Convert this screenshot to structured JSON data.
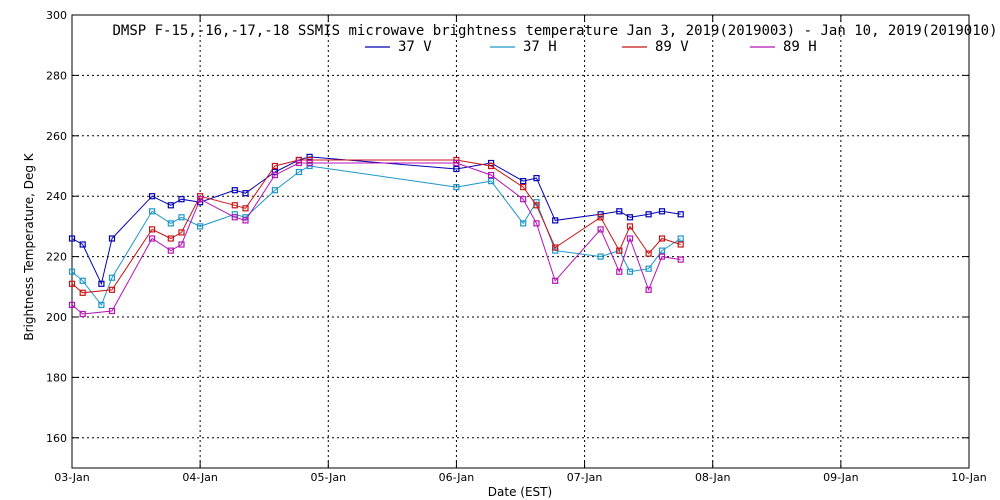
{
  "chart_data": {
    "type": "line",
    "title": "DMSP F-15,-16,-17,-18 SSMIS microwave brightness temperature Jan  3, 2019(2019003) - Jan 10, 2019(2019010)",
    "xlabel": "Date (EST)",
    "ylabel": "Brightness Temperature, Deg K",
    "xlim": [
      "2019-01-03",
      "2019-01-10"
    ],
    "ylim": [
      150,
      300
    ],
    "yticks": [
      160,
      180,
      200,
      220,
      240,
      260,
      280,
      300
    ],
    "xtick_labels": [
      "03-Jan",
      "04-Jan",
      "05-Jan",
      "06-Jan",
      "07-Jan",
      "08-Jan",
      "09-Jan",
      "10-Jan"
    ],
    "grid": true,
    "legend_position": "top-center",
    "series": [
      {
        "name": "37 V",
        "color": "#0000b4",
        "points": [
          [
            "2019-01-03 00:00",
            226
          ],
          [
            "2019-01-03 02:00",
            224
          ],
          [
            "2019-01-03 05:30",
            211
          ],
          [
            "2019-01-03 07:30",
            226
          ],
          [
            "2019-01-03 15:00",
            240
          ],
          [
            "2019-01-03 18:30",
            237
          ],
          [
            "2019-01-03 20:30",
            239
          ],
          [
            "2019-01-04 00:00",
            238
          ],
          [
            "2019-01-04 06:30",
            242
          ],
          [
            "2019-01-04 08:30",
            241
          ],
          [
            "2019-01-04 14:00",
            248
          ],
          [
            "2019-01-04 18:30",
            252
          ],
          [
            "2019-01-04 20:30",
            253
          ],
          [
            "2019-01-06 00:00",
            249
          ],
          [
            "2019-01-06 06:30",
            251
          ],
          [
            "2019-01-06 12:30",
            245
          ],
          [
            "2019-01-06 15:00",
            246
          ],
          [
            "2019-01-06 18:30",
            232
          ],
          [
            "2019-01-07 03:00",
            234
          ],
          [
            "2019-01-07 06:30",
            235
          ],
          [
            "2019-01-07 08:30",
            233
          ],
          [
            "2019-01-07 12:00",
            234
          ],
          [
            "2019-01-07 14:30",
            235
          ],
          [
            "2019-01-07 18:00",
            234
          ]
        ]
      },
      {
        "name": "37 H",
        "color": "#1e96c8",
        "points": [
          [
            "2019-01-03 00:00",
            215
          ],
          [
            "2019-01-03 02:00",
            212
          ],
          [
            "2019-01-03 05:30",
            204
          ],
          [
            "2019-01-03 07:30",
            213
          ],
          [
            "2019-01-03 15:00",
            235
          ],
          [
            "2019-01-03 18:30",
            231
          ],
          [
            "2019-01-03 20:30",
            233
          ],
          [
            "2019-01-04 00:00",
            230
          ],
          [
            "2019-01-04 06:30",
            234
          ],
          [
            "2019-01-04 08:30",
            233
          ],
          [
            "2019-01-04 14:00",
            242
          ],
          [
            "2019-01-04 18:30",
            248
          ],
          [
            "2019-01-04 20:30",
            250
          ],
          [
            "2019-01-06 00:00",
            243
          ],
          [
            "2019-01-06 06:30",
            245
          ],
          [
            "2019-01-06 12:30",
            231
          ],
          [
            "2019-01-06 15:00",
            238
          ],
          [
            "2019-01-06 18:30",
            222
          ],
          [
            "2019-01-07 03:00",
            220
          ],
          [
            "2019-01-07 06:30",
            222
          ],
          [
            "2019-01-07 08:30",
            215
          ],
          [
            "2019-01-07 12:00",
            216
          ],
          [
            "2019-01-07 14:30",
            222
          ],
          [
            "2019-01-07 18:00",
            226
          ]
        ]
      },
      {
        "name": "89 V",
        "color": "#c81414",
        "points": [
          [
            "2019-01-03 00:00",
            211
          ],
          [
            "2019-01-03 02:00",
            208
          ],
          [
            "2019-01-03 07:30",
            209
          ],
          [
            "2019-01-03 15:00",
            229
          ],
          [
            "2019-01-03 18:30",
            226
          ],
          [
            "2019-01-03 20:30",
            228
          ],
          [
            "2019-01-04 00:00",
            240
          ],
          [
            "2019-01-04 06:30",
            237
          ],
          [
            "2019-01-04 08:30",
            236
          ],
          [
            "2019-01-04 14:00",
            250
          ],
          [
            "2019-01-04 18:30",
            252
          ],
          [
            "2019-01-04 20:30",
            252
          ],
          [
            "2019-01-06 00:00",
            252
          ],
          [
            "2019-01-06 06:30",
            250
          ],
          [
            "2019-01-06 12:30",
            243
          ],
          [
            "2019-01-06 15:00",
            237
          ],
          [
            "2019-01-06 18:30",
            223
          ],
          [
            "2019-01-07 03:00",
            233
          ],
          [
            "2019-01-07 06:30",
            222
          ],
          [
            "2019-01-07 08:30",
            230
          ],
          [
            "2019-01-07 12:00",
            221
          ],
          [
            "2019-01-07 14:30",
            226
          ],
          [
            "2019-01-07 18:00",
            224
          ]
        ]
      },
      {
        "name": "89 H",
        "color": "#b414b4",
        "points": [
          [
            "2019-01-03 00:00",
            204
          ],
          [
            "2019-01-03 02:00",
            201
          ],
          [
            "2019-01-03 07:30",
            202
          ],
          [
            "2019-01-03 15:00",
            226
          ],
          [
            "2019-01-03 18:30",
            222
          ],
          [
            "2019-01-03 20:30",
            224
          ],
          [
            "2019-01-04 00:00",
            239
          ],
          [
            "2019-01-04 06:30",
            233
          ],
          [
            "2019-01-04 08:30",
            232
          ],
          [
            "2019-01-04 14:00",
            247
          ],
          [
            "2019-01-04 18:30",
            251
          ],
          [
            "2019-01-04 20:30",
            251
          ],
          [
            "2019-01-06 00:00",
            251
          ],
          [
            "2019-01-06 06:30",
            247
          ],
          [
            "2019-01-06 12:30",
            239
          ],
          [
            "2019-01-06 15:00",
            231
          ],
          [
            "2019-01-06 18:30",
            212
          ],
          [
            "2019-01-07 03:00",
            229
          ],
          [
            "2019-01-07 06:30",
            215
          ],
          [
            "2019-01-07 08:30",
            226
          ],
          [
            "2019-01-07 12:00",
            209
          ],
          [
            "2019-01-07 14:30",
            220
          ],
          [
            "2019-01-07 18:00",
            219
          ]
        ]
      }
    ]
  }
}
